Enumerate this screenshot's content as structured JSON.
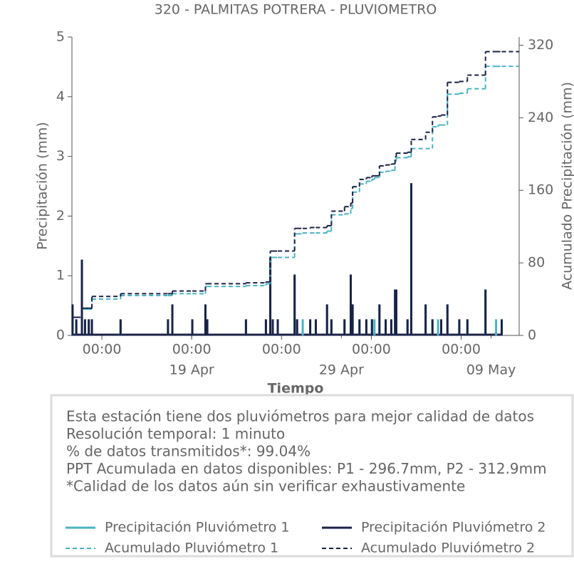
{
  "chart_data": {
    "type": "spike-step",
    "title": "320 - PALMITAS POTRERA - PLUVIOMETRO",
    "xlabel": "Tiempo",
    "ylabel": "Precipitación (mm)",
    "y2label": "Acumulado Precipitación (mm)",
    "x": [
      "11 Apr 01:00",
      "11 Apr 07:00",
      "11 Apr 16:00",
      "11 Apr 21:00",
      "12 Apr 03:00",
      "12 Apr 08:00",
      "14 Apr 06:00",
      "17 Apr 10:00",
      "17 Apr 17:00",
      "19 Apr 01:00",
      "19 Apr 22:00",
      "20 Apr 01:00",
      "22 Apr 15:00",
      "23 Apr 23:00",
      "24 Apr 06:00",
      "24 Apr 10:00",
      "24 Apr 18:00",
      "25 Apr 21:00",
      "26 Apr 01:00",
      "26 Apr 10:00",
      "26 Apr 22:00",
      "27 Apr 07:00",
      "28 Apr 01:00",
      "28 Apr 08:00",
      "29 Apr 05:00",
      "29 Apr 15:00",
      "29 Apr 18:00",
      "30 Apr 05:00",
      "30 Apr 16:00",
      "01 May 01:00",
      "01 May 05:00",
      "01 May 13:00",
      "01 May 23:00",
      "02 May 08:00",
      "02 May 14:00",
      "02 May 16:00",
      "03 May 10:00",
      "03 May 16:00",
      "04 May 15:00",
      "05 May 02:00",
      "05 May 11:00",
      "05 May 16:00",
      "06 May 02:00",
      "06 May 21:00",
      "07 May 10:00",
      "08 May 15:00",
      "09 May 08:00",
      "09 May 17:00"
    ],
    "series": [
      {
        "name": "Precipitación Pluviómetro 1",
        "color": "#4ab3c4",
        "mark": "spike",
        "values": [
          0.52,
          0.27,
          1.27,
          0.27,
          0.27,
          0.27,
          0.27,
          0.27,
          0.52,
          0.27,
          0.52,
          0.27,
          0.27,
          0.27,
          1.3,
          0.27,
          0.27,
          1.02,
          0.27,
          0.27,
          0.27,
          0.27,
          0.52,
          0.27,
          0.27,
          1.02,
          0.52,
          0.27,
          0.27,
          0.27,
          0.27,
          0.52,
          0.27,
          0.27,
          0.77,
          0.77,
          0.27,
          2.55,
          0.52,
          0.27,
          0.27,
          0.27,
          0.52,
          0.27,
          0.27,
          0.77,
          0.27,
          0.27
        ]
      },
      {
        "name": "Precipitación Pluviómetro 2",
        "color": "#1b2247",
        "mark": "spike",
        "values": [
          0.52,
          0.27,
          1.27,
          0.27,
          0.27,
          0.27,
          0.27,
          0.27,
          0.52,
          0.27,
          0.52,
          0.27,
          0.27,
          0.27,
          1.3,
          0.27,
          0.27,
          1.02,
          0.27,
          0,
          0.27,
          0.27,
          0.52,
          0.27,
          0.27,
          1.02,
          0.52,
          0.27,
          0.27,
          0.27,
          0,
          0.52,
          0.27,
          0.27,
          0.77,
          0.77,
          0.27,
          2.55,
          0.52,
          0.27,
          0,
          0.27,
          0.52,
          0.27,
          0.27,
          0.77,
          0,
          0.27
        ]
      },
      {
        "name": "Acumulado Pluviómetro 1",
        "color": "#4ab3c4",
        "mark": "step",
        "axis": "y2",
        "values": [
          20,
          20,
          29,
          29,
          29,
          40,
          44,
          44,
          46,
          46,
          54,
          54,
          55,
          57,
          86,
          86,
          86,
          112,
          112,
          113,
          113,
          113,
          115,
          133,
          134,
          140,
          158,
          167,
          170,
          172,
          174,
          180,
          181,
          182,
          192,
          196,
          197,
          206,
          206,
          230,
          232,
          232,
          266,
          267,
          272,
          296.7,
          296.7,
          296.7
        ]
      },
      {
        "name": "Acumulado Pluviómetro 2",
        "color": "#1b2247",
        "mark": "step",
        "axis": "y2",
        "values": [
          20,
          20,
          30,
          30,
          30,
          43,
          46,
          46,
          49,
          49,
          57,
          57,
          58,
          59,
          93,
          93,
          93,
          118,
          118,
          118,
          119,
          119,
          121,
          137,
          142,
          146,
          164,
          172,
          174,
          176,
          176,
          187,
          188,
          189,
          197,
          201,
          202,
          216,
          224,
          241,
          242,
          243,
          279,
          280,
          287,
          312.9,
          312.9,
          312.9
        ]
      }
    ],
    "xlim": [
      "11 Apr 00:00",
      "10 May 21:00"
    ],
    "xticks": [
      {
        "value": "13 Apr 00:00",
        "label": "00:00"
      },
      {
        "value": "19 Apr 00:00",
        "label": "00:00"
      },
      {
        "value": "25 Apr 00:00",
        "label": "00:00"
      },
      {
        "value": "01 May 00:00",
        "label": "00:00"
      },
      {
        "value": "07 May 00:00",
        "label": "00:00"
      }
    ],
    "xticks_dates": [
      {
        "value": "19 Apr 00:00",
        "label": "19 Apr"
      },
      {
        "value": "29 Apr 00:00",
        "label": "29 Apr"
      },
      {
        "value": "09 May 00:00",
        "label": "09 May"
      }
    ],
    "ylim": [
      0,
      5
    ],
    "yticks": [
      0,
      1,
      2,
      3,
      4,
      5
    ],
    "y2lim": [
      0,
      329
    ],
    "y2ticks": [
      0,
      80,
      160,
      240,
      320
    ],
    "notes": [
      "Esta estación tiene dos pluviómetros para mejor calidad de datos",
      "Resolución temporal: 1 minuto",
      "% de datos transmitidos*: 99.04%",
      "PPT Acumulada en datos disponibles: P1 - 296.7mm, P2 - 312.9mm",
      "*Calidad de los datos aún sin verificar exhaustivamente"
    ]
  }
}
